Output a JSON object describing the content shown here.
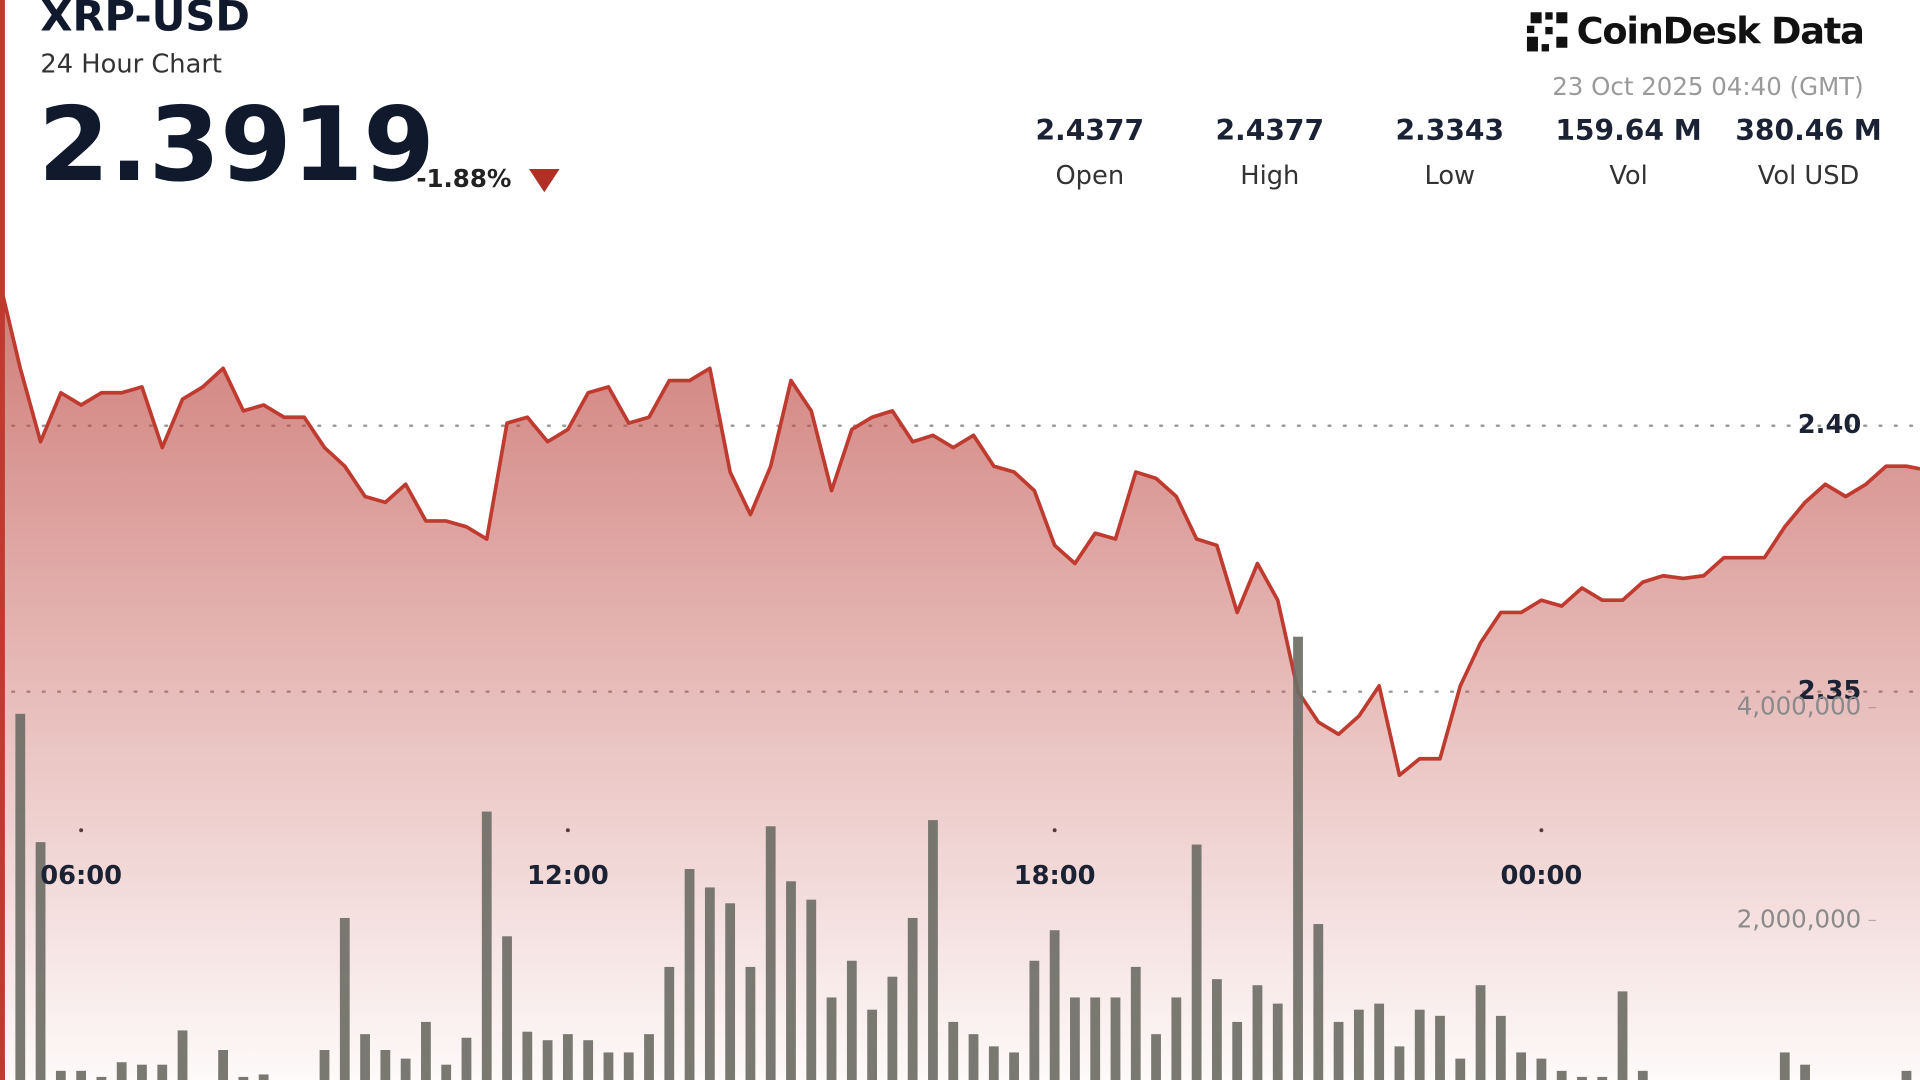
{
  "header": {
    "symbol": "XRP-USD",
    "subtitle": "24 Hour Chart",
    "price": 2.3919,
    "change": "-1.88%",
    "brand": "CoinDesk Data",
    "timestamp": "23 Oct 2025 04:40 (GMT)",
    "stats": [
      {
        "value": "2.4377",
        "label": "Open"
      },
      {
        "value": "2.4377",
        "label": "High"
      },
      {
        "value": "2.3343",
        "label": "Low"
      },
      {
        "value": "159.64 M",
        "label": "Vol"
      },
      {
        "value": "380.46 M",
        "label": "Vol USD"
      }
    ]
  },
  "chart_data": {
    "type": "line",
    "x": [
      300,
      315,
      330,
      345,
      360,
      375,
      390,
      405,
      420,
      435,
      450,
      465,
      480,
      495,
      510,
      525,
      540,
      555,
      570,
      585,
      600,
      615,
      630,
      645,
      660,
      675,
      690,
      705,
      720,
      735,
      750,
      765,
      780,
      795,
      810,
      825,
      840,
      855,
      870,
      885,
      900,
      915,
      930,
      945,
      960,
      975,
      990,
      1005,
      1020,
      1035,
      1050,
      1065,
      1080,
      1095,
      1110,
      1125,
      1140,
      1155,
      1170,
      1185,
      1200,
      1215,
      1230,
      1245,
      1260,
      1275,
      1290,
      1305,
      1320,
      1335,
      1350,
      1365,
      1380,
      1395,
      1410,
      1425,
      1440,
      1455,
      1470,
      1485,
      1500,
      1515,
      1530,
      1545,
      1560,
      1575,
      1590,
      1605,
      1620,
      1635,
      1650,
      1665,
      1680,
      1695,
      1710,
      1720
    ],
    "series": [
      {
        "color": "#bf3a2f",
        "values": [
          2.4268,
          2.4108,
          2.397,
          2.4062,
          2.4039,
          2.4062,
          2.4062,
          2.4073,
          2.3959,
          2.405,
          2.4073,
          2.4108,
          2.4028,
          2.4039,
          2.4016,
          2.4016,
          2.3959,
          2.3924,
          2.3867,
          2.3856,
          2.389,
          2.3821,
          2.3821,
          2.381,
          2.3787,
          2.4005,
          2.4016,
          2.397,
          2.3993,
          2.4062,
          2.4073,
          2.4005,
          2.4016,
          2.4085,
          2.4085,
          2.4108,
          2.3913,
          2.3833,
          2.3924,
          2.4085,
          2.4028,
          2.3878,
          2.3993,
          2.4016,
          2.4028,
          2.397,
          2.3982,
          2.3959,
          2.3982,
          2.3924,
          2.3913,
          2.3878,
          2.3775,
          2.3741,
          2.3798,
          2.3787,
          2.3913,
          2.3901,
          2.3867,
          2.3787,
          2.3775,
          2.3649,
          2.3741,
          2.3672,
          2.35,
          2.3443,
          2.342,
          2.3454,
          2.3511,
          2.3343,
          2.3374,
          2.3374,
          2.3511,
          2.3592,
          2.3649,
          2.3649,
          2.3672,
          2.3661,
          2.3695,
          2.3672,
          2.3672,
          2.3706,
          2.3718,
          2.3713,
          2.3718,
          2.3752,
          2.3752,
          2.3752,
          2.381,
          2.3856,
          2.389,
          2.3867,
          2.389,
          2.3924,
          2.3924,
          2.3919
        ]
      },
      {
        "type": "bar",
        "axis": "y2",
        "color": "#6e6e66",
        "values": [
          701000,
          3942000,
          2736000,
          586000,
          586000,
          529000,
          667000,
          644000,
          644000,
          966000,
          471000,
          782000,
          529000,
          552000,
          414000,
          414000,
          782000,
          2023000,
          931000,
          782000,
          701000,
          1046000,
          644000,
          897000,
          3023000,
          1851000,
          954000,
          874000,
          931000,
          874000,
          759000,
          759000,
          931000,
          1563000,
          2483000,
          2310000,
          2161000,
          1563000,
          2885000,
          2368000,
          2195000,
          1276000,
          1621000,
          1161000,
          1471000,
          2023000,
          2943000,
          1046000,
          931000,
          816000,
          759000,
          1621000,
          1908000,
          1276000,
          1276000,
          1276000,
          1563000,
          931000,
          1276000,
          2713000,
          1448000,
          1046000,
          1391000,
          1218000,
          4667000,
          1966000,
          1046000,
          1161000,
          1218000,
          816000,
          1161000,
          1103000,
          701000,
          1391000,
          1103000,
          759000,
          701000,
          586000,
          529000,
          529000,
          1333000,
          586000,
          471000,
          414000,
          414000,
          414000,
          414000,
          471000,
          759000,
          644000,
          471000,
          471000,
          471000,
          471000,
          586000,
          471000
        ]
      }
    ],
    "xlim": [
      300,
      1720
    ],
    "xticks": [
      {
        "value": 360,
        "label": "06:00"
      },
      {
        "value": 720,
        "label": "12:00"
      },
      {
        "value": 1080,
        "label": "18:00"
      },
      {
        "value": 1440,
        "label": "00:00"
      }
    ],
    "ylim": [
      2.277,
      2.434
    ],
    "yticks": [
      {
        "value": 2.35,
        "label": "2.35"
      },
      {
        "value": 2.4,
        "label": "2.40"
      }
    ],
    "y2lim": [
      500000,
      8350000
    ],
    "y2ticks": [
      {
        "value": 2000000,
        "label": "2,000,000"
      },
      {
        "value": 4000000,
        "label": "4,000,000"
      }
    ],
    "grid": true
  }
}
